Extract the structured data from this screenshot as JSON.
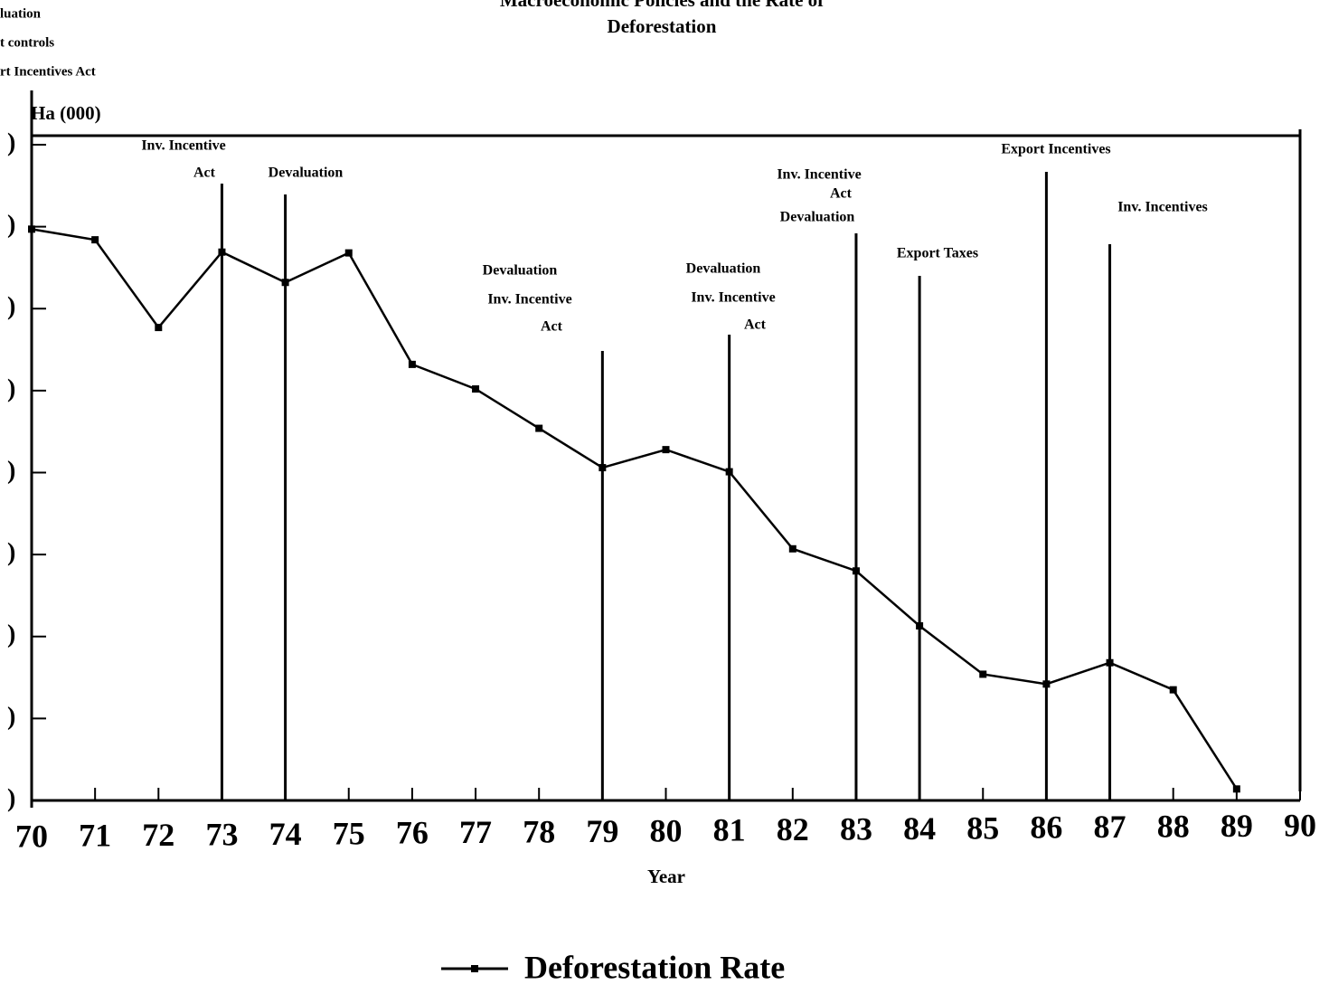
{
  "chart_data": {
    "type": "line",
    "title": [
      "Macroeconomic Policies and the Rate of",
      "Deforestation"
    ],
    "cropped_notes": [
      "luation",
      "t controls",
      "rt Incentives Act"
    ],
    "y_axis_label": "Ha (000)",
    "x_axis_label": "Year",
    "xlim": [
      70,
      90
    ],
    "xticks": [
      70,
      71,
      72,
      73,
      74,
      75,
      76,
      77,
      78,
      79,
      80,
      81,
      82,
      83,
      84,
      85,
      86,
      87,
      88,
      89,
      90
    ],
    "x": [
      70,
      71,
      72,
      73,
      74,
      75,
      76,
      77,
      78,
      79,
      80,
      81,
      82,
      83,
      84,
      85,
      86,
      87,
      88,
      89
    ],
    "ylim": [
      0,
      80
    ],
    "yticks": [
      {
        "value": 0,
        "label": ")"
      },
      {
        "value": 10,
        "label": ")"
      },
      {
        "value": 20,
        "label": ")"
      },
      {
        "value": 30,
        "label": ")"
      },
      {
        "value": 40,
        "label": ")"
      },
      {
        "value": 50,
        "label": ")"
      },
      {
        "value": 60,
        "label": ")"
      },
      {
        "value": 70,
        "label": ")"
      },
      {
        "value": 80,
        "label": ")"
      }
    ],
    "series": [
      {
        "name": "Deforestation Rate",
        "color": "#000000",
        "values": [
          69.7,
          68.4,
          57.7,
          66.9,
          63.2,
          66.8,
          53.2,
          50.2,
          45.4,
          40.6,
          42.8,
          40.1,
          30.7,
          28.0,
          21.3,
          15.4,
          14.2,
          16.8,
          13.5,
          1.4
        ]
      }
    ],
    "annotations": [
      {
        "year": 73,
        "lines": [
          "Inv. Incentive",
          "Act"
        ]
      },
      {
        "year": 74,
        "lines": [
          "Devaluation"
        ]
      },
      {
        "year": 79,
        "lines": [
          "Devaluation",
          "Inv. Incentive",
          "Act"
        ]
      },
      {
        "year": 81,
        "lines": [
          "Devaluation",
          "Inv. Incentive",
          "Act"
        ]
      },
      {
        "year": 83,
        "lines": [
          "Inv. Incentive",
          "Act",
          "Devaluation"
        ]
      },
      {
        "year": 84,
        "lines": [
          "Export Taxes"
        ]
      },
      {
        "year": 86,
        "lines": [
          "Export Incentives"
        ]
      },
      {
        "year": 87,
        "lines": [
          "Inv. Incentives"
        ]
      }
    ],
    "legend_position": "bottom"
  }
}
